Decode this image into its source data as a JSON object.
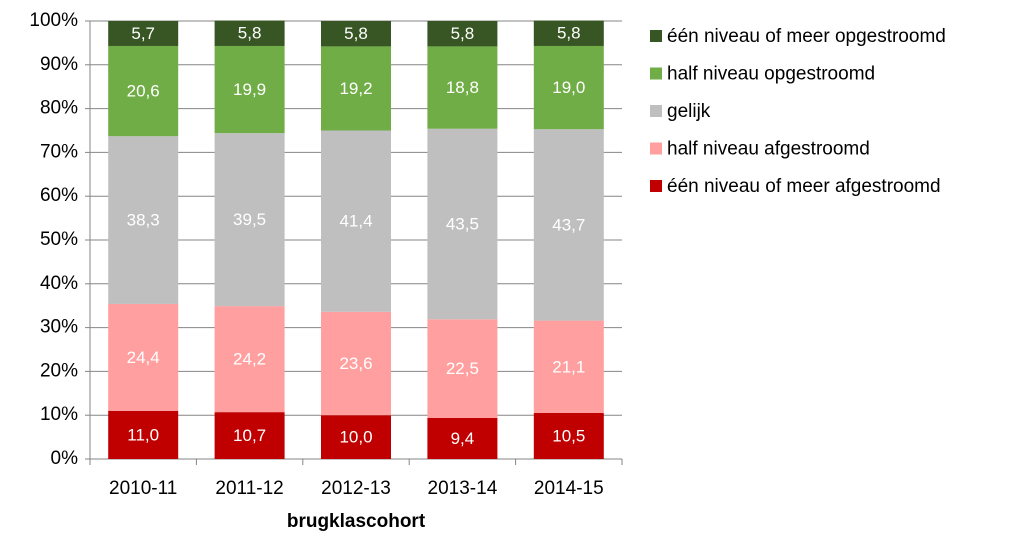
{
  "chart_data": {
    "type": "stacked_bar",
    "x_label": "brugklascohort",
    "categories": [
      "2010-11",
      "2011-12",
      "2012-13",
      "2013-14",
      "2014-15"
    ],
    "series": [
      {
        "name": "één niveau of meer afgestroomd",
        "color": "#c00000",
        "values": [
          11.0,
          10.7,
          10.0,
          9.4,
          10.5
        ],
        "value_labels": [
          "11,0",
          "10,7",
          "10,0",
          "9,4",
          "10,5"
        ]
      },
      {
        "name": "half niveau afgestroomd",
        "color": "#ff9f9f",
        "values": [
          24.4,
          24.2,
          23.6,
          22.5,
          21.1
        ],
        "value_labels": [
          "24,4",
          "24,2",
          "23,6",
          "22,5",
          "21,1"
        ]
      },
      {
        "name": "gelijk",
        "color": "#bfbfbf",
        "values": [
          38.3,
          39.5,
          41.4,
          43.5,
          43.7
        ],
        "value_labels": [
          "38,3",
          "39,5",
          "41,4",
          "43,5",
          "43,7"
        ]
      },
      {
        "name": "half niveau opgestroomd",
        "color": "#70ad47",
        "values": [
          20.6,
          19.9,
          19.2,
          18.8,
          19.0
        ],
        "value_labels": [
          "20,6",
          "19,9",
          "19,2",
          "18,8",
          "19,0"
        ]
      },
      {
        "name": "één niveau of meer opgestroomd",
        "color": "#375623",
        "values": [
          5.7,
          5.8,
          5.8,
          5.8,
          5.8
        ],
        "value_labels": [
          "5,7",
          "5,8",
          "5,8",
          "5,8",
          "5,8"
        ]
      }
    ],
    "ylim": [
      0,
      100
    ],
    "yticks": [
      {
        "value": 0,
        "label": "0%"
      },
      {
        "value": 10,
        "label": "10%"
      },
      {
        "value": 20,
        "label": "20%"
      },
      {
        "value": 30,
        "label": "30%"
      },
      {
        "value": 40,
        "label": "40%"
      },
      {
        "value": 50,
        "label": "50%"
      },
      {
        "value": 60,
        "label": "60%"
      },
      {
        "value": 70,
        "label": "70%"
      },
      {
        "value": 80,
        "label": "80%"
      },
      {
        "value": 90,
        "label": "90%"
      },
      {
        "value": 100,
        "label": "100%"
      }
    ],
    "grid": true,
    "legend": "right"
  }
}
